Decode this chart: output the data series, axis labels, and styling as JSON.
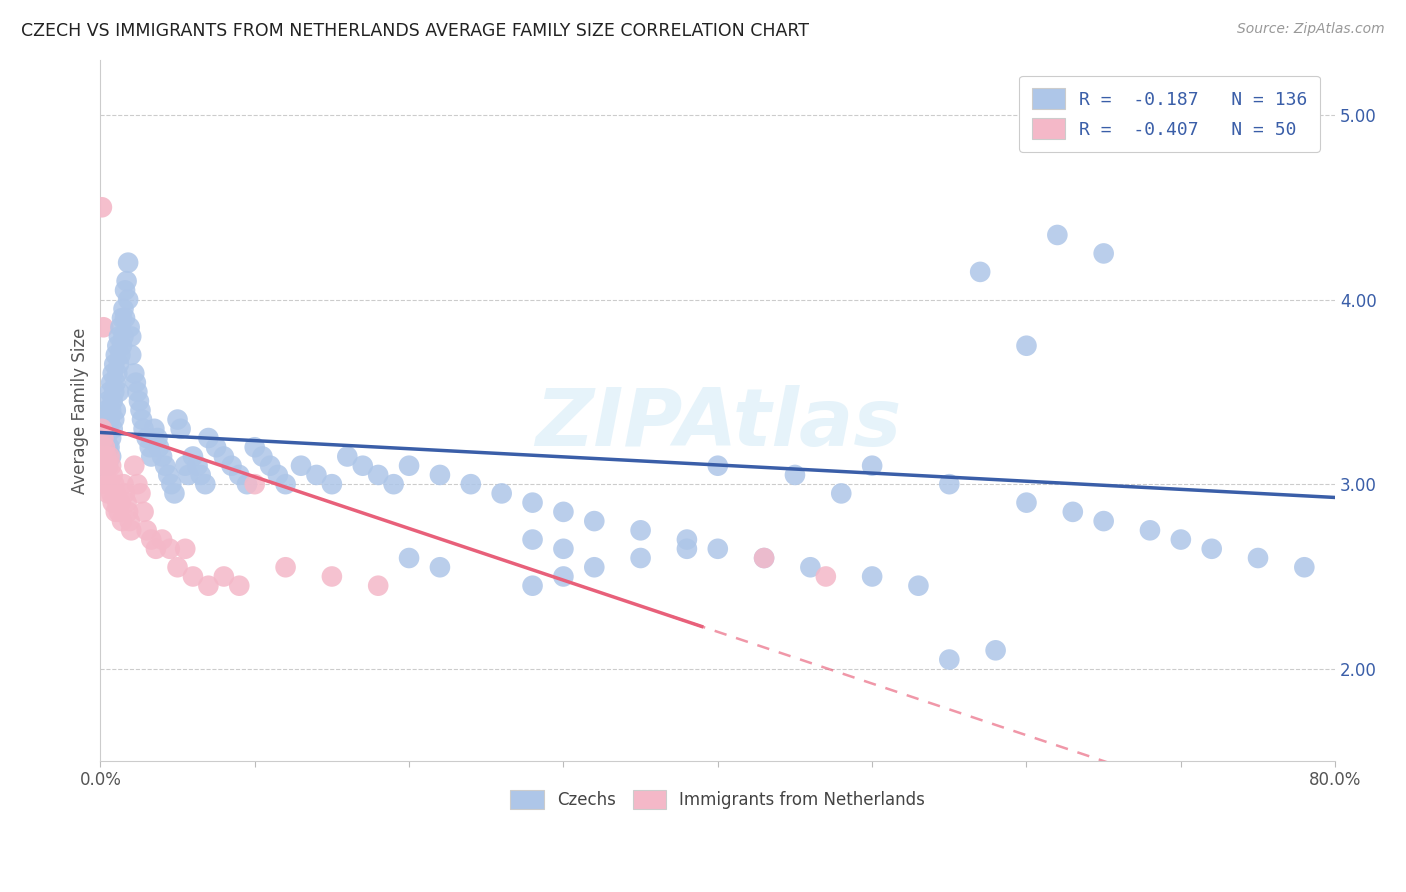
{
  "title": "CZECH VS IMMIGRANTS FROM NETHERLANDS AVERAGE FAMILY SIZE CORRELATION CHART",
  "source": "Source: ZipAtlas.com",
  "ylabel": "Average Family Size",
  "ytick_labels": [
    "2.00",
    "3.00",
    "4.00",
    "5.00"
  ],
  "ytick_values": [
    2.0,
    3.0,
    4.0,
    5.0
  ],
  "xlim": [
    0.0,
    0.8
  ],
  "ylim": [
    1.5,
    5.3
  ],
  "legend_labels": [
    "Czechs",
    "Immigrants from Netherlands"
  ],
  "blue_color": "#aec6e8",
  "pink_color": "#f4b8c8",
  "blue_line_color": "#3a5ea8",
  "pink_line_color": "#e8607a",
  "legend_R_blue": "-0.187",
  "legend_N_blue": "136",
  "legend_R_pink": "-0.407",
  "legend_N_pink": "50",
  "watermark": "ZIPAtlas",
  "blue_intercept": 3.28,
  "blue_slope": -0.44,
  "pink_intercept": 3.32,
  "pink_slope": -2.8,
  "pink_line_end_solid": 0.38,
  "blue_scatter_x": [
    0.001,
    0.001,
    0.002,
    0.002,
    0.002,
    0.003,
    0.003,
    0.003,
    0.004,
    0.004,
    0.004,
    0.005,
    0.005,
    0.005,
    0.005,
    0.006,
    0.006,
    0.006,
    0.007,
    0.007,
    0.007,
    0.007,
    0.008,
    0.008,
    0.008,
    0.009,
    0.009,
    0.009,
    0.01,
    0.01,
    0.01,
    0.011,
    0.011,
    0.012,
    0.012,
    0.012,
    0.013,
    0.013,
    0.014,
    0.014,
    0.015,
    0.015,
    0.016,
    0.016,
    0.017,
    0.018,
    0.018,
    0.019,
    0.02,
    0.02,
    0.022,
    0.023,
    0.024,
    0.025,
    0.026,
    0.027,
    0.028,
    0.03,
    0.032,
    0.033,
    0.035,
    0.037,
    0.038,
    0.04,
    0.042,
    0.044,
    0.046,
    0.048,
    0.05,
    0.052,
    0.055,
    0.057,
    0.06,
    0.063,
    0.065,
    0.068,
    0.07,
    0.075,
    0.08,
    0.085,
    0.09,
    0.095,
    0.1,
    0.105,
    0.11,
    0.115,
    0.12,
    0.13,
    0.14,
    0.15,
    0.16,
    0.17,
    0.18,
    0.19,
    0.2,
    0.22,
    0.24,
    0.26,
    0.28,
    0.3,
    0.32,
    0.35,
    0.38,
    0.4,
    0.43,
    0.46,
    0.5,
    0.53,
    0.55,
    0.58,
    0.6,
    0.63,
    0.65,
    0.68,
    0.7,
    0.72,
    0.75,
    0.78,
    0.62,
    0.65,
    0.57,
    0.6,
    0.2,
    0.22,
    0.28,
    0.3,
    0.55,
    0.5,
    0.48,
    0.45,
    0.4,
    0.38,
    0.35,
    0.32,
    0.3,
    0.28
  ],
  "blue_scatter_y": [
    3.25,
    3.15,
    3.3,
    3.2,
    3.1,
    3.35,
    3.2,
    3.15,
    3.4,
    3.25,
    3.1,
    3.45,
    3.3,
    3.2,
    3.1,
    3.5,
    3.35,
    3.2,
    3.55,
    3.4,
    3.25,
    3.15,
    3.6,
    3.45,
    3.3,
    3.65,
    3.5,
    3.35,
    3.7,
    3.55,
    3.4,
    3.75,
    3.6,
    3.8,
    3.65,
    3.5,
    3.85,
    3.7,
    3.9,
    3.75,
    3.95,
    3.8,
    4.05,
    3.9,
    4.1,
    4.2,
    4.0,
    3.85,
    3.8,
    3.7,
    3.6,
    3.55,
    3.5,
    3.45,
    3.4,
    3.35,
    3.3,
    3.25,
    3.2,
    3.15,
    3.3,
    3.25,
    3.2,
    3.15,
    3.1,
    3.05,
    3.0,
    2.95,
    3.35,
    3.3,
    3.1,
    3.05,
    3.15,
    3.1,
    3.05,
    3.0,
    3.25,
    3.2,
    3.15,
    3.1,
    3.05,
    3.0,
    3.2,
    3.15,
    3.1,
    3.05,
    3.0,
    3.1,
    3.05,
    3.0,
    3.15,
    3.1,
    3.05,
    3.0,
    3.1,
    3.05,
    3.0,
    2.95,
    2.9,
    2.85,
    2.8,
    2.75,
    2.7,
    2.65,
    2.6,
    2.55,
    2.5,
    2.45,
    2.05,
    2.1,
    2.9,
    2.85,
    2.8,
    2.75,
    2.7,
    2.65,
    2.6,
    2.55,
    4.35,
    4.25,
    4.15,
    3.75,
    2.6,
    2.55,
    2.7,
    2.65,
    3.0,
    3.1,
    2.95,
    3.05,
    3.1,
    2.65,
    2.6,
    2.55,
    2.5,
    2.45
  ],
  "pink_scatter_x": [
    0.001,
    0.001,
    0.002,
    0.002,
    0.003,
    0.003,
    0.004,
    0.004,
    0.005,
    0.005,
    0.006,
    0.006,
    0.007,
    0.007,
    0.008,
    0.008,
    0.009,
    0.01,
    0.01,
    0.011,
    0.012,
    0.013,
    0.014,
    0.015,
    0.016,
    0.017,
    0.018,
    0.019,
    0.02,
    0.022,
    0.024,
    0.026,
    0.028,
    0.03,
    0.033,
    0.036,
    0.04,
    0.045,
    0.05,
    0.055,
    0.06,
    0.07,
    0.08,
    0.09,
    0.1,
    0.12,
    0.15,
    0.18,
    0.43,
    0.47
  ],
  "pink_scatter_y": [
    3.3,
    3.15,
    3.25,
    3.1,
    3.2,
    3.05,
    3.15,
    3.0,
    3.1,
    2.95,
    3.15,
    3.0,
    3.1,
    2.95,
    3.05,
    2.9,
    3.0,
    2.95,
    2.85,
    2.9,
    2.85,
    2.9,
    2.8,
    3.0,
    2.95,
    2.9,
    2.85,
    2.8,
    2.75,
    3.1,
    3.0,
    2.95,
    2.85,
    2.75,
    2.7,
    2.65,
    2.7,
    2.65,
    2.55,
    2.65,
    2.5,
    2.45,
    2.5,
    2.45,
    3.0,
    2.55,
    2.5,
    2.45,
    2.6,
    2.5
  ]
}
